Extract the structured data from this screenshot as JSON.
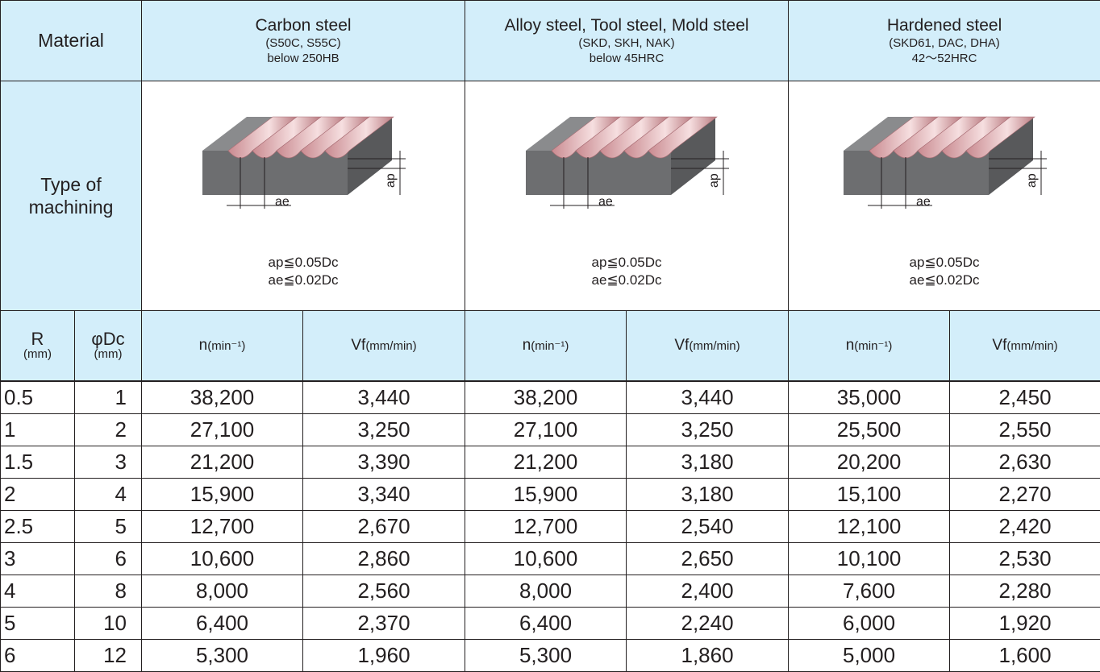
{
  "table": {
    "material_label": "Material",
    "type_label": "Type of machining",
    "r_header": {
      "symbol": "R",
      "unit": "(mm)"
    },
    "dc_header": {
      "symbol": "φDc",
      "unit": "(mm)"
    },
    "groups": [
      {
        "name": "Carbon steel",
        "spec": "(S50C, S55C)",
        "hardness": "below 250HB",
        "diagram": {
          "ae_label": "ae",
          "ap_label": "ap",
          "formula_ap": "ap≦0.05Dc",
          "formula_ae": "ae≦0.02Dc"
        },
        "n_header": {
          "symbol": "n",
          "unit": "(min⁻¹)"
        },
        "vf_header": {
          "symbol": "Vf",
          "unit": "(mm/min)"
        }
      },
      {
        "name": "Alloy steel, Tool steel, Mold steel",
        "spec": "(SKD, SKH, NAK)",
        "hardness": "below 45HRC",
        "diagram": {
          "ae_label": "ae",
          "ap_label": "ap",
          "formula_ap": "ap≦0.05Dc",
          "formula_ae": "ae≦0.02Dc"
        },
        "n_header": {
          "symbol": "n",
          "unit": "(min⁻¹)"
        },
        "vf_header": {
          "symbol": "Vf",
          "unit": "(mm/min)"
        }
      },
      {
        "name": "Hardened steel",
        "spec": "(SKD61, DAC, DHA)",
        "hardness": "42〜52HRC",
        "diagram": {
          "ae_label": "ae",
          "ap_label": "ap",
          "formula_ap": "ap≦0.05Dc",
          "formula_ae": "ae≦0.02Dc"
        },
        "n_header": {
          "symbol": "n",
          "unit": "(min⁻¹)"
        },
        "vf_header": {
          "symbol": "Vf",
          "unit": "(mm/min)"
        }
      }
    ],
    "rows": [
      [
        "0.5",
        "1",
        "38,200",
        "3,440",
        "38,200",
        "3,440",
        "35,000",
        "2,450"
      ],
      [
        "1",
        "2",
        "27,100",
        "3,250",
        "27,100",
        "3,250",
        "25,500",
        "2,550"
      ],
      [
        "1.5",
        "3",
        "21,200",
        "3,390",
        "21,200",
        "3,180",
        "20,200",
        "2,630"
      ],
      [
        "2",
        "4",
        "15,900",
        "3,340",
        "15,900",
        "3,180",
        "15,100",
        "2,270"
      ],
      [
        "2.5",
        "5",
        "12,700",
        "2,670",
        "12,700",
        "2,540",
        "12,100",
        "2,420"
      ],
      [
        "3",
        "6",
        "10,600",
        "2,860",
        "10,600",
        "2,650",
        "10,100",
        "2,530"
      ],
      [
        "4",
        "8",
        "8,000",
        "2,560",
        "8,000",
        "2,400",
        "7,600",
        "2,280"
      ],
      [
        "5",
        "10",
        "6,400",
        "2,370",
        "6,400",
        "2,240",
        "6,000",
        "1,920"
      ],
      [
        "6",
        "12",
        "5,300",
        "1,960",
        "5,300",
        "1,860",
        "5,000",
        "1,600"
      ]
    ]
  }
}
